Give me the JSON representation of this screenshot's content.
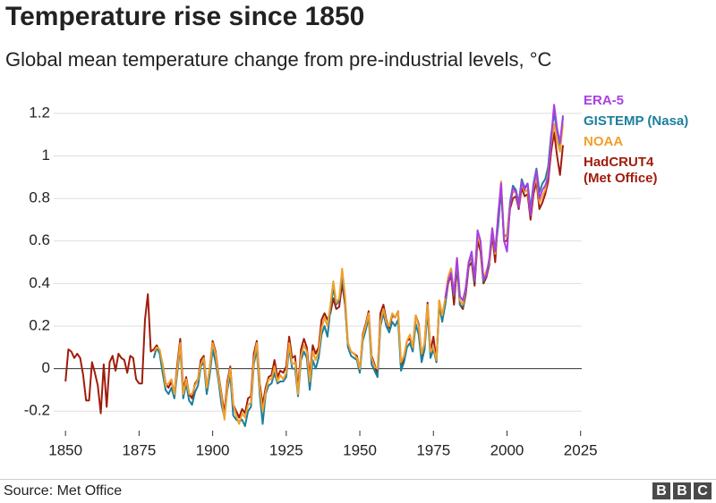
{
  "chart_data": {
    "type": "line",
    "title": "Temperature rise since 1850",
    "subtitle": "Global mean temperature change from pre-industrial levels, °C",
    "source": "Source: Met Office",
    "logo": "BBC",
    "x": [
      1850,
      1851,
      1852,
      1853,
      1854,
      1855,
      1856,
      1857,
      1858,
      1859,
      1860,
      1861,
      1862,
      1863,
      1864,
      1865,
      1866,
      1867,
      1868,
      1869,
      1870,
      1871,
      1872,
      1873,
      1874,
      1875,
      1876,
      1877,
      1878,
      1879,
      1880,
      1881,
      1882,
      1883,
      1884,
      1885,
      1886,
      1887,
      1888,
      1889,
      1890,
      1891,
      1892,
      1893,
      1894,
      1895,
      1896,
      1897,
      1898,
      1899,
      1900,
      1901,
      1902,
      1903,
      1904,
      1905,
      1906,
      1907,
      1908,
      1909,
      1910,
      1911,
      1912,
      1913,
      1914,
      1915,
      1916,
      1917,
      1918,
      1919,
      1920,
      1921,
      1922,
      1923,
      1924,
      1925,
      1926,
      1927,
      1928,
      1929,
      1930,
      1931,
      1932,
      1933,
      1934,
      1935,
      1936,
      1937,
      1938,
      1939,
      1940,
      1941,
      1942,
      1943,
      1944,
      1945,
      1946,
      1947,
      1948,
      1949,
      1950,
      1951,
      1952,
      1953,
      1954,
      1955,
      1956,
      1957,
      1958,
      1959,
      1960,
      1961,
      1962,
      1963,
      1964,
      1965,
      1966,
      1967,
      1968,
      1969,
      1970,
      1971,
      1972,
      1973,
      1974,
      1975,
      1976,
      1977,
      1978,
      1979,
      1980,
      1981,
      1982,
      1983,
      1984,
      1985,
      1986,
      1987,
      1988,
      1989,
      1990,
      1991,
      1992,
      1993,
      1994,
      1995,
      1996,
      1997,
      1998,
      1999,
      2000,
      2001,
      2002,
      2003,
      2004,
      2005,
      2006,
      2007,
      2008,
      2009,
      2010,
      2011,
      2012,
      2013,
      2014,
      2015,
      2016,
      2017,
      2018,
      2019
    ],
    "series": [
      {
        "name": "ERA-5",
        "color": "#a83fe3",
        "values": [
          null,
          null,
          null,
          null,
          null,
          null,
          null,
          null,
          null,
          null,
          null,
          null,
          null,
          null,
          null,
          null,
          null,
          null,
          null,
          null,
          null,
          null,
          null,
          null,
          null,
          null,
          null,
          null,
          null,
          null,
          null,
          null,
          null,
          null,
          null,
          null,
          null,
          null,
          null,
          null,
          null,
          null,
          null,
          null,
          null,
          null,
          null,
          null,
          null,
          null,
          null,
          null,
          null,
          null,
          null,
          null,
          null,
          null,
          null,
          null,
          null,
          null,
          null,
          null,
          null,
          null,
          null,
          null,
          null,
          null,
          null,
          null,
          null,
          null,
          null,
          null,
          null,
          null,
          null,
          null,
          null,
          null,
          null,
          null,
          null,
          null,
          null,
          null,
          null,
          null,
          null,
          null,
          null,
          null,
          null,
          null,
          null,
          null,
          null,
          null,
          null,
          null,
          null,
          null,
          null,
          null,
          null,
          null,
          null,
          null,
          null,
          null,
          null,
          null,
          null,
          null,
          null,
          null,
          null,
          null,
          null,
          null,
          null,
          null,
          null,
          null,
          null,
          null,
          null,
          0.33,
          0.41,
          0.45,
          0.35,
          0.52,
          0.34,
          0.32,
          0.38,
          0.5,
          0.55,
          0.42,
          0.65,
          0.6,
          0.42,
          0.44,
          0.52,
          0.66,
          0.55,
          0.72,
          0.87,
          0.6,
          0.55,
          0.76,
          0.85,
          0.83,
          0.76,
          0.88,
          0.84,
          0.87,
          0.72,
          0.86,
          0.93,
          0.8,
          0.84,
          0.86,
          0.9,
          1.08,
          1.24,
          1.13,
          1.06,
          1.19
        ]
      },
      {
        "name": "GISTEMP (Nasa)",
        "color": "#1c7f9c",
        "values": [
          null,
          null,
          null,
          null,
          null,
          null,
          null,
          null,
          null,
          null,
          null,
          null,
          null,
          null,
          null,
          null,
          null,
          null,
          null,
          null,
          null,
          null,
          null,
          null,
          null,
          null,
          null,
          null,
          null,
          null,
          0.05,
          0.1,
          0.07,
          -0.02,
          -0.1,
          -0.12,
          -0.09,
          -0.14,
          -0.02,
          0.1,
          -0.14,
          -0.07,
          -0.15,
          -0.17,
          -0.11,
          -0.08,
          0.01,
          0.03,
          -0.12,
          -0.03,
          0.09,
          0.03,
          -0.06,
          -0.17,
          -0.23,
          -0.1,
          -0.03,
          -0.22,
          -0.24,
          -0.25,
          -0.24,
          -0.27,
          -0.2,
          -0.18,
          0.02,
          0.09,
          -0.12,
          -0.26,
          -0.12,
          -0.08,
          -0.07,
          -0.02,
          -0.07,
          -0.06,
          -0.06,
          -0.04,
          0.1,
          0.0,
          0.0,
          -0.13,
          0.04,
          0.08,
          0.05,
          -0.1,
          0.04,
          0.0,
          0.05,
          0.16,
          0.2,
          0.15,
          0.28,
          0.38,
          0.3,
          0.32,
          0.44,
          0.32,
          0.1,
          0.06,
          0.05,
          0.04,
          -0.02,
          0.13,
          0.18,
          0.24,
          0.02,
          -0.01,
          -0.04,
          0.2,
          0.26,
          0.2,
          0.17,
          0.22,
          0.2,
          0.23,
          -0.01,
          0.03,
          0.1,
          0.12,
          0.08,
          0.21,
          0.16,
          0.03,
          0.09,
          0.27,
          0.05,
          0.09,
          0.03,
          0.3,
          0.22,
          0.3,
          0.42,
          0.47,
          0.34,
          0.5,
          0.3,
          0.29,
          0.37,
          0.5,
          0.52,
          0.41,
          0.63,
          0.59,
          0.41,
          0.44,
          0.5,
          0.65,
          0.55,
          0.67,
          0.84,
          0.62,
          0.63,
          0.78,
          0.86,
          0.84,
          0.78,
          0.89,
          0.85,
          0.87,
          0.75,
          0.87,
          0.94,
          0.83,
          0.87,
          0.89,
          0.95,
          1.1,
          1.2,
          1.12,
          1.05,
          1.18
        ]
      },
      {
        "name": "NOAA",
        "color": "#f0a02a",
        "values": [
          null,
          null,
          null,
          null,
          null,
          null,
          null,
          null,
          null,
          null,
          null,
          null,
          null,
          null,
          null,
          null,
          null,
          null,
          null,
          null,
          null,
          null,
          null,
          null,
          null,
          null,
          null,
          null,
          null,
          null,
          0.08,
          0.1,
          0.09,
          0.02,
          -0.08,
          -0.07,
          -0.05,
          -0.12,
          0.0,
          0.12,
          -0.12,
          -0.05,
          -0.12,
          -0.12,
          -0.08,
          -0.05,
          0.02,
          0.05,
          -0.09,
          0.0,
          0.12,
          0.07,
          -0.04,
          -0.13,
          -0.24,
          -0.08,
          0.0,
          -0.17,
          -0.22,
          -0.26,
          -0.21,
          -0.23,
          -0.17,
          -0.16,
          0.04,
          0.12,
          -0.09,
          -0.2,
          -0.11,
          -0.05,
          -0.05,
          0.01,
          -0.06,
          -0.03,
          -0.05,
          -0.02,
          0.12,
          0.02,
          0.03,
          -0.12,
          0.06,
          0.11,
          0.08,
          -0.06,
          0.08,
          0.04,
          0.08,
          0.19,
          0.24,
          0.2,
          0.3,
          0.41,
          0.31,
          0.33,
          0.47,
          0.34,
          0.12,
          0.08,
          0.07,
          0.05,
          0.0,
          0.15,
          0.2,
          0.26,
          0.05,
          0.01,
          0.0,
          0.22,
          0.28,
          0.22,
          0.2,
          0.26,
          0.24,
          0.27,
          0.03,
          0.06,
          0.13,
          0.16,
          0.1,
          0.25,
          0.2,
          0.07,
          0.12,
          0.3,
          0.08,
          0.1,
          0.04,
          0.32,
          0.25,
          0.33,
          0.43,
          0.47,
          0.35,
          0.52,
          0.32,
          0.3,
          0.38,
          0.5,
          0.54,
          0.42,
          0.63,
          0.58,
          0.42,
          0.46,
          0.5,
          0.66,
          0.54,
          0.72,
          0.88,
          0.62,
          0.62,
          0.77,
          0.83,
          0.83,
          0.76,
          0.87,
          0.83,
          0.84,
          0.73,
          0.85,
          0.9,
          0.78,
          0.81,
          0.84,
          0.92,
          1.06,
          1.15,
          1.07,
          1.02,
          1.15
        ]
      },
      {
        "name": "HadCRUT4 (Met Office)",
        "color": "#a01c0c",
        "values": [
          -0.06,
          0.09,
          0.08,
          0.05,
          0.07,
          0.05,
          -0.03,
          -0.15,
          -0.15,
          0.03,
          -0.02,
          -0.08,
          -0.21,
          0.02,
          -0.18,
          0.03,
          0.06,
          -0.01,
          0.07,
          0.05,
          0.04,
          -0.02,
          0.06,
          0.05,
          -0.05,
          -0.07,
          -0.07,
          0.23,
          0.35,
          0.08,
          0.09,
          0.11,
          0.08,
          0.02,
          -0.07,
          -0.09,
          -0.06,
          -0.12,
          0.02,
          0.14,
          -0.1,
          -0.04,
          -0.12,
          -0.14,
          -0.07,
          -0.05,
          0.04,
          0.06,
          -0.09,
          0.0,
          0.13,
          0.08,
          -0.03,
          -0.12,
          -0.21,
          -0.06,
          0.01,
          -0.17,
          -0.2,
          -0.23,
          -0.19,
          -0.21,
          -0.14,
          -0.13,
          0.07,
          0.13,
          -0.07,
          -0.17,
          -0.09,
          -0.04,
          -0.03,
          0.04,
          -0.04,
          -0.01,
          -0.02,
          0.01,
          0.15,
          0.05,
          0.06,
          -0.1,
          0.09,
          0.14,
          0.1,
          -0.04,
          0.11,
          0.07,
          0.1,
          0.23,
          0.26,
          0.23,
          0.26,
          0.33,
          0.28,
          0.29,
          0.4,
          0.3,
          0.1,
          0.08,
          0.07,
          0.06,
          -0.01,
          0.16,
          0.21,
          0.27,
          0.06,
          0.02,
          -0.03,
          0.26,
          0.3,
          0.23,
          0.19,
          0.25,
          0.24,
          0.27,
          0.0,
          0.05,
          0.13,
          0.14,
          0.1,
          0.25,
          0.21,
          0.06,
          0.12,
          0.31,
          0.08,
          0.15,
          0.03,
          0.32,
          0.24,
          0.3,
          0.4,
          0.44,
          0.3,
          0.48,
          0.3,
          0.28,
          0.35,
          0.48,
          0.5,
          0.39,
          0.6,
          0.55,
          0.4,
          0.43,
          0.49,
          0.63,
          0.5,
          0.72,
          0.85,
          0.6,
          0.6,
          0.75,
          0.8,
          0.81,
          0.75,
          0.85,
          0.81,
          0.82,
          0.7,
          0.82,
          0.88,
          0.75,
          0.78,
          0.82,
          0.88,
          1.02,
          1.11,
          1.0,
          0.91,
          1.05
        ]
      }
    ],
    "xlim": [
      1846,
      2026
    ],
    "xticks": [
      1850,
      1875,
      1900,
      1925,
      1950,
      1975,
      2000,
      2025
    ],
    "ylim": [
      -0.3,
      1.3
    ],
    "yticks": [
      -0.2,
      0,
      0.2,
      0.4,
      0.6,
      0.8,
      1,
      1.2
    ],
    "grid": true
  }
}
